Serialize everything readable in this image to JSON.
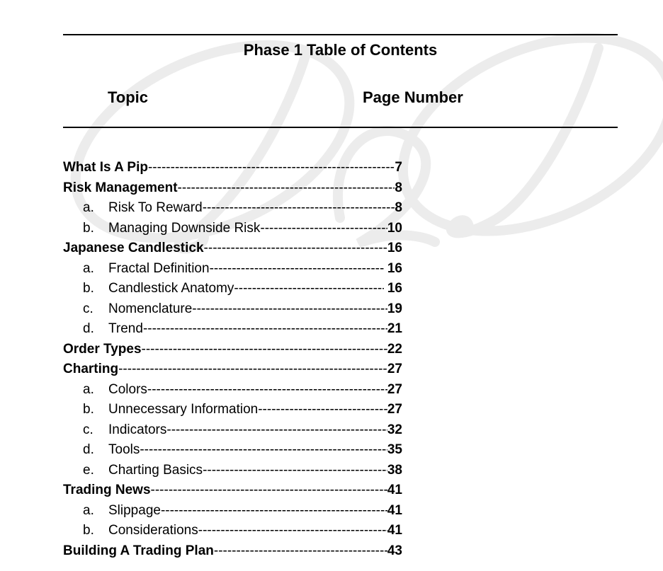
{
  "header": {
    "title": "Phase 1 Table of Contents",
    "columns": {
      "topic": "Topic",
      "page_number": "Page Number"
    }
  },
  "watermark": {
    "name": "script-monogram-watermark",
    "color": "#ececec"
  },
  "toc": {
    "dash_fill": "--------------------------------------------------------------------------------------------------------------",
    "entries": [
      {
        "level": 0,
        "letter": "",
        "label": "What Is A Pip",
        "page": "7"
      },
      {
        "level": 0,
        "letter": "",
        "label": "Risk Management",
        "page": "8"
      },
      {
        "level": 1,
        "letter": "a.",
        "label": "Risk To Reward",
        "page": "8"
      },
      {
        "level": 1,
        "letter": "b.",
        "label": "Managing Downside Risk",
        "page": "10"
      },
      {
        "level": 0,
        "letter": "",
        "label": "Japanese Candlestick",
        "page": "16"
      },
      {
        "level": 1,
        "letter": "a.",
        "label": "Fractal Definition",
        "page": " 16"
      },
      {
        "level": 1,
        "letter": "b.",
        "label": "Candlestick Anatomy",
        "page": " 16"
      },
      {
        "level": 1,
        "letter": "c.",
        "label": "Nomenclature",
        "page": "19"
      },
      {
        "level": 1,
        "letter": "d.",
        "label": "Trend",
        "page": "21"
      },
      {
        "level": 0,
        "letter": "",
        "label": "Order Types",
        "page": "22"
      },
      {
        "level": 0,
        "letter": "",
        "label": "Charting",
        "page": "27"
      },
      {
        "level": 1,
        "letter": "a.",
        "label": "Colors",
        "page": "27"
      },
      {
        "level": 1,
        "letter": "b.",
        "label": "Unnecessary Information",
        "page": "27"
      },
      {
        "level": 1,
        "letter": "c.",
        "label": "Indicators",
        "page": "32"
      },
      {
        "level": 1,
        "letter": "d.",
        "label": "Tools",
        "page": "35"
      },
      {
        "level": 1,
        "letter": "e.",
        "label": "Charting Basics",
        "page": "38"
      },
      {
        "level": 0,
        "letter": "",
        "label": "Trading News",
        "page": "41"
      },
      {
        "level": 1,
        "letter": "a.",
        "label": "Slippage",
        "page": "41"
      },
      {
        "level": 1,
        "letter": "b.",
        "label": "Considerations",
        "page": "41"
      },
      {
        "level": 0,
        "letter": "",
        "label": "Building A Trading Plan",
        "page": "43"
      }
    ]
  }
}
